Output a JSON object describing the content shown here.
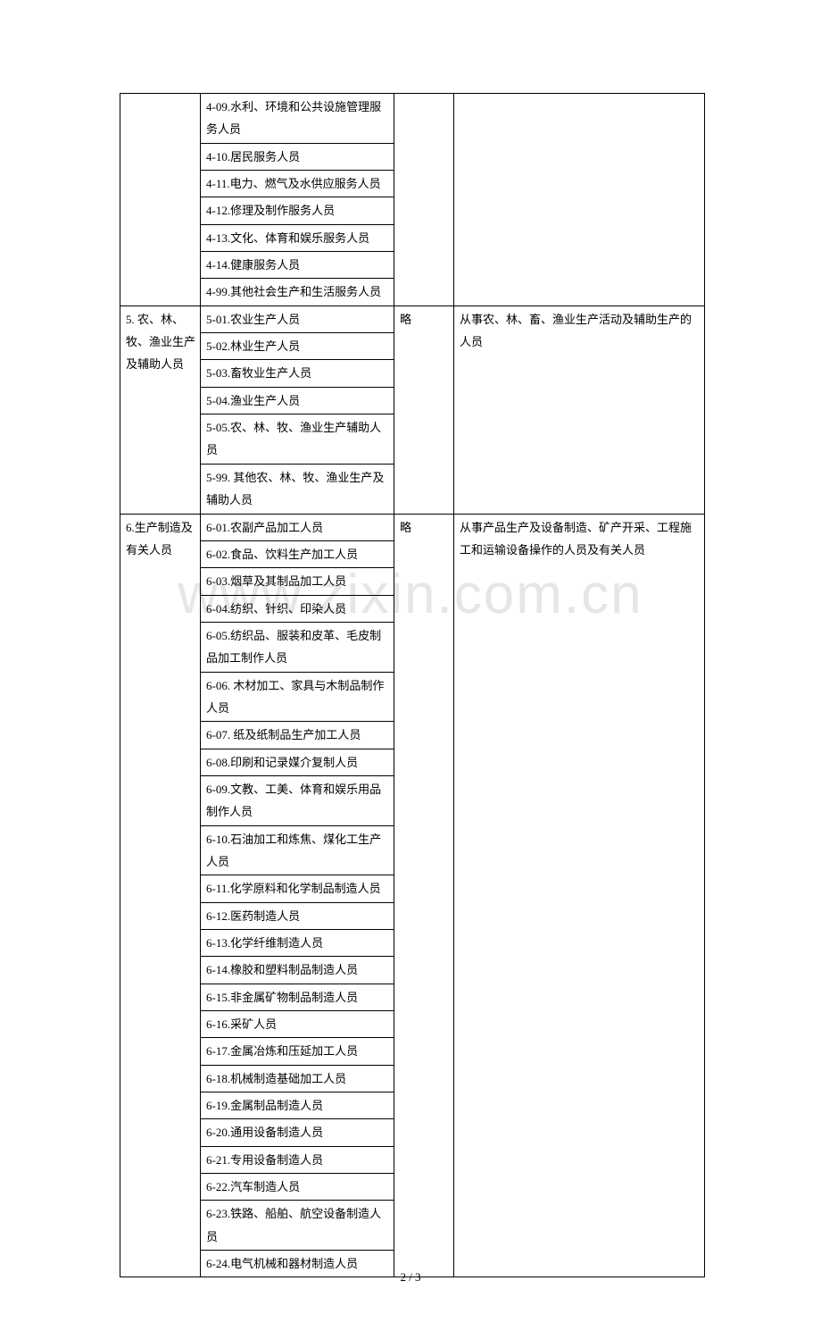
{
  "watermark": "www.zixin.com.cn",
  "footer": "2 / 3",
  "colors": {
    "text": "#000000",
    "border": "#000000",
    "background": "#ffffff",
    "watermark": "#e6e6e6"
  },
  "fontsize": {
    "cell": 13,
    "watermark": 62,
    "footer": 13
  },
  "rows": [
    {
      "col1": "",
      "col2_items": [
        "4-09.水利、环境和公共设施管理服务人员",
        "4-10.居民服务人员",
        "4-11.电力、燃气及水供应服务人员",
        "4-12.修理及制作服务人员",
        "4-13.文化、体育和娱乐服务人员",
        "4-14.健康服务人员",
        "4-99.其他社会生产和生活服务人员"
      ],
      "col3": "",
      "col4": ""
    },
    {
      "col1": "5. 农、林、牧、渔业生产及辅助人员",
      "col2_items": [
        "5-01.农业生产人员",
        "5-02.林业生产人员",
        "5-03.畜牧业生产人员",
        "5-04.渔业生产人员",
        "5-05.农、林、牧、渔业生产辅助人员",
        "5-99. 其他农、林、牧、渔业生产及辅助人员"
      ],
      "col3": "略",
      "col4": "从事农、林、畜、渔业生产活动及辅助生产的人员"
    },
    {
      "col1": "6.生产制造及有关人员",
      "col2_items": [
        "6-01.农副产品加工人员",
        "6-02.食品、饮料生产加工人员",
        "6-03.烟草及其制品加工人员",
        "6-04.纺织、针织、印染人员",
        "6-05.纺织品、服装和皮革、毛皮制品加工制作人员",
        "6-06. 木材加工、家具与木制品制作人员",
        "6-07. 纸及纸制品生产加工人员",
        "6-08.印刷和记录媒介复制人员",
        "6-09.文教、工美、体育和娱乐用品制作人员",
        "6-10.石油加工和炼焦、煤化工生产人员",
        "6-11.化学原料和化学制品制造人员",
        "6-12.医药制造人员",
        "6-13.化学纤维制造人员",
        "6-14.橡胶和塑料制品制造人员",
        "6-15.非金属矿物制品制造人员",
        "6-16.采矿人员",
        "6-17.金属冶炼和压延加工人员",
        "6-18.机械制造基础加工人员",
        "6-19.金属制品制造人员",
        "6-20.通用设备制造人员",
        "6-21.专用设备制造人员",
        "6-22.汽车制造人员",
        "6-23.铁路、船舶、航空设备制造人员",
        "6-24.电气机械和器材制造人员"
      ],
      "col3": "略",
      "col4": "从事产品生产及设备制造、矿产开采、工程施工和运输设备操作的人员及有关人员"
    }
  ]
}
